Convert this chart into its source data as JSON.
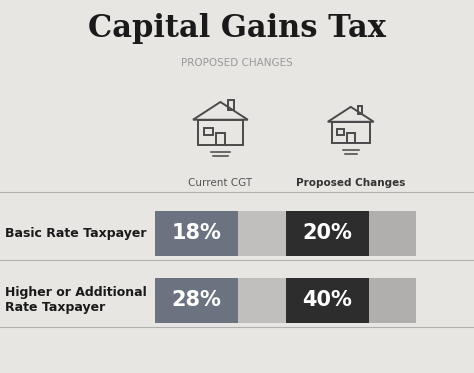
{
  "title": "Capital Gains Tax",
  "subtitle": "PROPOSED CHANGES",
  "background_color": "#e8e6e3",
  "title_color": "#1a1a1a",
  "subtitle_color": "#999999",
  "col1_label": "Current CGT",
  "col2_label": "Proposed Changes",
  "rows": [
    {
      "label": "Basic Rate Taxpayer",
      "current_pct": "18%",
      "proposed_pct": "20%",
      "current_box_color": "#6b7280",
      "current_bg_color": "#c0bfbe",
      "proposed_box_color": "#2d2d2d",
      "proposed_bg_color": "#b0afae"
    },
    {
      "label": "Higher or Additional\nRate Taxpayer",
      "current_pct": "28%",
      "proposed_pct": "40%",
      "current_box_color": "#6b7280",
      "current_bg_color": "#c0bfbe",
      "proposed_box_color": "#2d2d2d",
      "proposed_bg_color": "#b0afae"
    }
  ],
  "label_color": "#1a1a1a",
  "pct_text_color": "#ffffff",
  "divider_color": "#b0b0b0",
  "house_color": "#4a4a4a"
}
